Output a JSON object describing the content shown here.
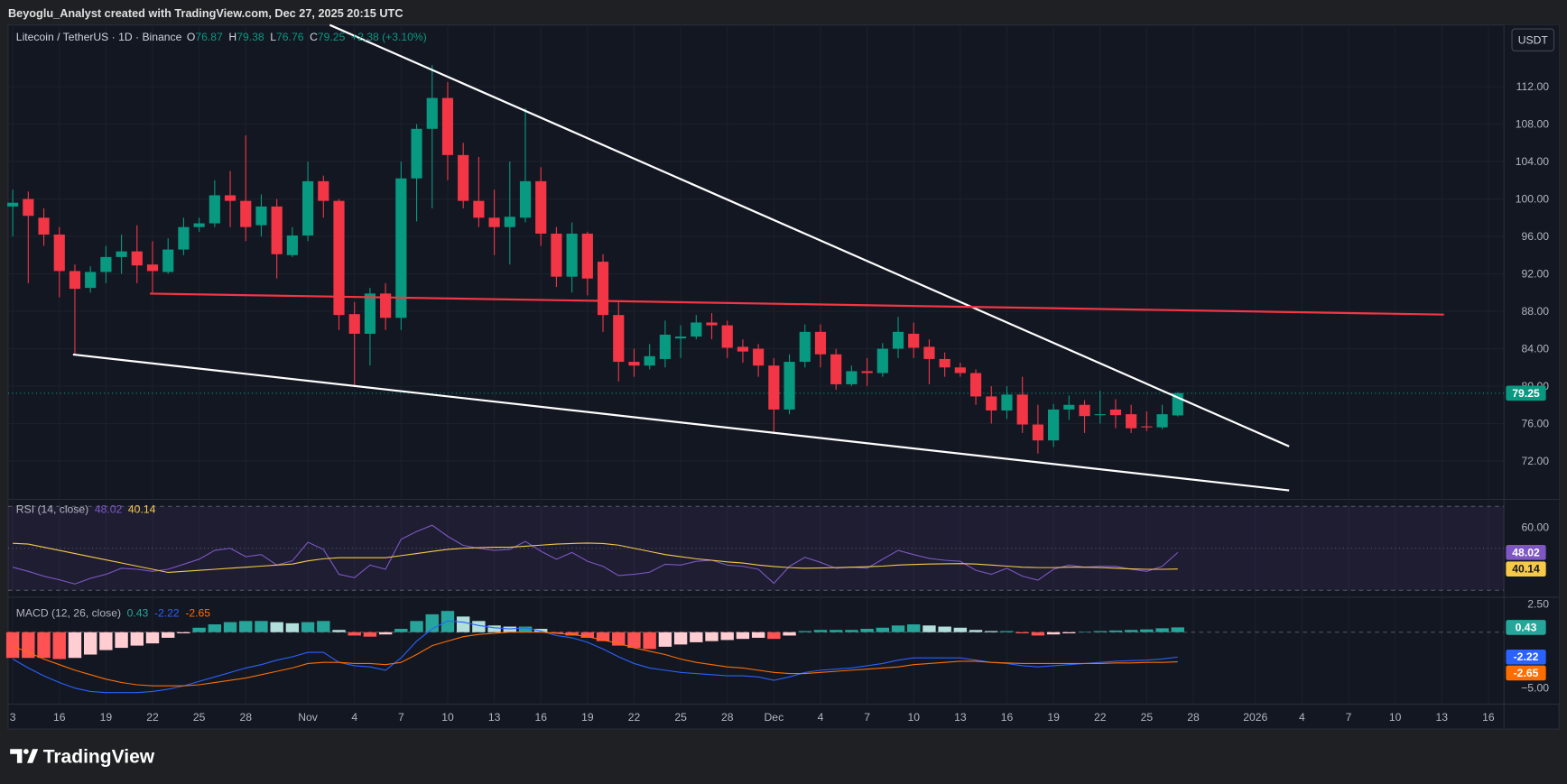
{
  "header": {
    "credit": "Beyoglu_Analyst created with TradingView.com, Dec 27, 2025 20:15 UTC"
  },
  "toolbar": {
    "currency": "USDT"
  },
  "footer": {
    "logo": "TradingView"
  },
  "chart_data": [
    {
      "type": "candlestick",
      "title": "Litecoin / TetherUS · 1D · Binance",
      "ohlc_keys": [
        "O",
        "H",
        "L",
        "C"
      ],
      "change": "+2.38 (+3.10%)",
      "up_color": "#089981",
      "down_color": "#f23645",
      "x": [
        0,
        1,
        2,
        3,
        4,
        5,
        6,
        7,
        8,
        9,
        10,
        11,
        12,
        13,
        14,
        15,
        16,
        17,
        18,
        19,
        20,
        21,
        22,
        23,
        24,
        25,
        26,
        27,
        28,
        29,
        30,
        31,
        32,
        33,
        34,
        35,
        36,
        37,
        38,
        39,
        40,
        41,
        42,
        43,
        44,
        45,
        46,
        47,
        48,
        49,
        50,
        51,
        52,
        53,
        54,
        55,
        56,
        57,
        58,
        59,
        60,
        61,
        62,
        63,
        64,
        65,
        66,
        67,
        68,
        69,
        70,
        71,
        72,
        73,
        74,
        75
      ],
      "open": [
        99.2,
        100,
        98,
        96.2,
        92.3,
        90.5,
        92.2,
        93.8,
        94.4,
        93,
        92.2,
        94.6,
        97,
        97.4,
        100.4,
        99.8,
        97.2,
        99.2,
        94,
        96.1,
        101.9,
        99.8,
        87.7,
        85.6,
        89.9,
        87.3,
        102.2,
        107.5,
        110.8,
        104.7,
        99.8,
        98,
        97,
        98,
        101.9,
        96.3,
        91.7,
        96.3,
        93.3,
        87.6,
        82.6,
        82.2,
        82.9,
        85.1,
        85.3,
        86.8,
        86.5,
        84.2,
        84,
        82.2,
        77.5,
        82.6,
        85.8,
        83.4,
        80.2,
        81.6,
        81.4,
        84,
        85.6,
        84.2,
        82.9,
        82,
        81.4,
        78.9,
        77.4,
        79.1,
        75.9,
        74.2,
        77.5,
        78,
        76.9,
        77.5,
        77,
        75.7,
        75.6,
        76.87
      ],
      "high": [
        101,
        100.8,
        99,
        97,
        93,
        92.8,
        95,
        96.2,
        97.2,
        95.5,
        95.8,
        98,
        98,
        102,
        103,
        106.8,
        100.5,
        100,
        97,
        104,
        102.5,
        100,
        89,
        90.5,
        91,
        104,
        108,
        114.3,
        112.5,
        106,
        104.5,
        101,
        104,
        109.7,
        103.4,
        97,
        97.5,
        96.5,
        94.1,
        89,
        84,
        84.5,
        87,
        86.5,
        87.6,
        87.8,
        87,
        85,
        84.5,
        83,
        83.4,
        86.6,
        86.6,
        84,
        82.2,
        83,
        84.6,
        87.4,
        86.8,
        85,
        83.6,
        82.5,
        81.8,
        80,
        80,
        81,
        78,
        78.1,
        79,
        78.5,
        79.5,
        78.6,
        78,
        77.3,
        78,
        79.38
      ],
      "low": [
        96,
        91,
        95,
        89.5,
        83.4,
        90,
        91,
        92,
        91,
        90,
        92,
        94,
        96.5,
        97,
        97,
        95.5,
        96,
        91.5,
        93.8,
        95.5,
        98,
        86,
        79.9,
        82.2,
        86,
        86,
        97.6,
        99,
        102,
        99,
        97,
        94,
        93,
        97.5,
        95,
        90.6,
        90,
        89.7,
        85.8,
        80.5,
        81,
        81.8,
        82,
        83,
        85,
        85,
        83,
        82.5,
        81,
        75,
        77,
        82,
        82,
        79.6,
        80,
        80,
        81,
        83,
        83,
        80.2,
        81,
        81,
        78,
        76,
        76.5,
        75,
        72.8,
        73.5,
        76.4,
        75,
        76,
        75.5,
        75,
        75.2,
        75.4,
        76.76
      ],
      "close": [
        99.6,
        98.2,
        96.2,
        92.3,
        90.4,
        92.2,
        93.8,
        94.4,
        92.9,
        92.3,
        94.6,
        97,
        97.4,
        100.4,
        99.8,
        97,
        99.2,
        94.1,
        96.1,
        101.9,
        99.8,
        87.6,
        85.6,
        89.9,
        87.3,
        102.2,
        107.5,
        110.8,
        104.7,
        99.8,
        98,
        97,
        98.1,
        101.9,
        96.3,
        91.7,
        96.3,
        91.5,
        87.6,
        82.6,
        82.2,
        83.2,
        85.5,
        85.3,
        86.8,
        86.5,
        84.1,
        83.7,
        82.2,
        77.5,
        82.6,
        85.8,
        83.4,
        80.2,
        81.6,
        81.4,
        84,
        85.8,
        84.1,
        82.9,
        82,
        81.4,
        78.9,
        77.4,
        79.1,
        75.9,
        74.2,
        77.5,
        78,
        76.8,
        77,
        76.9,
        75.5,
        75.6,
        77,
        79.25
      ],
      "xlim": [
        -0.3,
        96
      ],
      "xticks": [
        {
          "value": 0,
          "label": "3"
        },
        {
          "value": 3,
          "label": "16"
        },
        {
          "value": 6,
          "label": "19"
        },
        {
          "value": 9,
          "label": "22"
        },
        {
          "value": 12,
          "label": "25"
        },
        {
          "value": 15,
          "label": "28"
        },
        {
          "value": 19,
          "label": "Nov"
        },
        {
          "value": 22,
          "label": "4"
        },
        {
          "value": 25,
          "label": "7"
        },
        {
          "value": 28,
          "label": "10"
        },
        {
          "value": 31,
          "label": "13"
        },
        {
          "value": 34,
          "label": "16"
        },
        {
          "value": 37,
          "label": "19"
        },
        {
          "value": 40,
          "label": "22"
        },
        {
          "value": 43,
          "label": "25"
        },
        {
          "value": 46,
          "label": "28"
        },
        {
          "value": 49,
          "label": "Dec"
        },
        {
          "value": 52,
          "label": "4"
        },
        {
          "value": 55,
          "label": "7"
        },
        {
          "value": 58,
          "label": "10"
        },
        {
          "value": 61,
          "label": "13"
        },
        {
          "value": 64,
          "label": "16"
        },
        {
          "value": 67,
          "label": "19"
        },
        {
          "value": 70,
          "label": "22"
        },
        {
          "value": 73,
          "label": "25"
        },
        {
          "value": 76,
          "label": "28"
        },
        {
          "value": 80,
          "label": "2026"
        },
        {
          "value": 83,
          "label": "4"
        },
        {
          "value": 86,
          "label": "7"
        },
        {
          "value": 89,
          "label": "10"
        },
        {
          "value": 92,
          "label": "13"
        },
        {
          "value": 95,
          "label": "16"
        }
      ],
      "ylim": [
        67.9,
        118.6
      ],
      "yticks": [
        {
          "value": 72,
          "label": "72.00"
        },
        {
          "value": 76,
          "label": "76.00"
        },
        {
          "value": 80,
          "label": "80.00"
        },
        {
          "value": 84,
          "label": "84.00"
        },
        {
          "value": 88,
          "label": "88.00"
        },
        {
          "value": 92,
          "label": "92.00"
        },
        {
          "value": 96,
          "label": "96.00"
        },
        {
          "value": 100,
          "label": "100.00"
        },
        {
          "value": 104,
          "label": "104.00"
        },
        {
          "value": 108,
          "label": "108.00"
        },
        {
          "value": 112,
          "label": "112.00"
        }
      ],
      "grid": true,
      "drawings": [
        {
          "color": "#ffffff",
          "x": [
            20.41,
            82.17
          ],
          "y": [
            118.6,
            73.56
          ]
        },
        {
          "color": "#ffffff",
          "x": [
            3.88,
            82.17
          ],
          "y": [
            83.38,
            68.86
          ]
        },
        {
          "color": "#f23645",
          "x": [
            8.83,
            92.14
          ],
          "y": [
            89.89,
            87.65
          ]
        }
      ]
    },
    {
      "type": "line",
      "title": "RSI (14, close)",
      "series": [
        {
          "color": "#7e57c2",
          "values": [
            41,
            39,
            36.7,
            35,
            33,
            35.7,
            37.6,
            40.5,
            40,
            39,
            40,
            42.4,
            44.8,
            49,
            50,
            46,
            47,
            42,
            44,
            52.9,
            49.5,
            37.6,
            36,
            42,
            40,
            54.3,
            58,
            61,
            55.7,
            51.4,
            50,
            49,
            49.5,
            53.3,
            48.6,
            44.8,
            48,
            43.8,
            41.4,
            37,
            37.6,
            38.6,
            42.4,
            42,
            43.8,
            44.3,
            42,
            41.4,
            40,
            33.3,
            41.4,
            45.7,
            43.3,
            40.5,
            41,
            40.5,
            44.8,
            49,
            47,
            45.2,
            44.3,
            43.8,
            39.5,
            37.6,
            40.5,
            36.7,
            34.8,
            40,
            42,
            41,
            41.4,
            41.4,
            40,
            39,
            41.4,
            48.02
          ]
        },
        {
          "color": "#f7c948",
          "values": [
            52.4,
            52,
            50.5,
            49,
            47.5,
            46,
            44.5,
            43,
            41.5,
            40,
            38.5,
            39,
            39.5,
            40,
            40.5,
            41,
            41.5,
            42,
            42.5,
            44,
            45,
            45.5,
            45.5,
            45.5,
            45.5,
            46.5,
            47.5,
            48.5,
            49.5,
            50,
            50.3,
            50.5,
            50.5,
            51,
            51.5,
            52,
            52.3,
            52.5,
            52.3,
            51.5,
            50,
            48.5,
            47,
            46,
            45,
            44.3,
            43.5,
            43,
            42,
            41.3,
            40.8,
            40.5,
            40.6,
            40.8,
            41,
            41.2,
            41.5,
            42,
            42.3,
            42.5,
            42.6,
            42.7,
            42.5,
            42,
            41.5,
            41,
            40.8,
            40.8,
            41,
            41,
            40.8,
            40.5,
            40.2,
            40,
            40,
            40.14
          ]
        }
      ],
      "ylim": [
        26.67,
        73.33
      ],
      "yticks": [
        {
          "value": 60,
          "label": "60.00"
        }
      ],
      "bands": [
        70,
        50,
        30
      ],
      "band_fill": "#7e57c2"
    },
    {
      "type": "macd",
      "title": "MACD (12, 26, close)",
      "histogram": {
        "colors": [
          "#26a69a",
          "#b2dfdb",
          "#ffcdd2",
          "#ff5252"
        ],
        "values": [
          -2.3,
          -2.3,
          -2.3,
          -2.4,
          -2.3,
          -2.0,
          -1.6,
          -1.4,
          -1.2,
          -1.0,
          -0.5,
          -0.1,
          0.4,
          0.7,
          0.9,
          1.0,
          1.0,
          0.9,
          0.8,
          0.9,
          1.0,
          0.2,
          -0.3,
          -0.4,
          -0.2,
          0.3,
          1.0,
          1.6,
          1.9,
          1.4,
          1.0,
          0.6,
          0.5,
          0.5,
          0.3,
          -0.1,
          -0.3,
          -0.5,
          -0.8,
          -1.2,
          -1.4,
          -1.5,
          -1.3,
          -1.1,
          -0.9,
          -0.8,
          -0.7,
          -0.6,
          -0.5,
          -0.6,
          -0.3,
          0.1,
          0.2,
          0.2,
          0.2,
          0.3,
          0.4,
          0.6,
          0.7,
          0.6,
          0.5,
          0.4,
          0.2,
          0.1,
          0.1,
          -0.1,
          -0.3,
          -0.2,
          -0.1,
          0.02,
          0.1,
          0.15,
          0.2,
          0.25,
          0.35,
          0.43
        ]
      },
      "series": [
        {
          "color": "#2962ff",
          "values": [
            -2.4,
            -3.2,
            -3.9,
            -4.5,
            -5.0,
            -5.3,
            -5.4,
            -5.4,
            -5.4,
            -5.3,
            -5.1,
            -4.8,
            -4.4,
            -4.0,
            -3.6,
            -3.2,
            -2.9,
            -2.5,
            -2.2,
            -1.8,
            -1.8,
            -2.7,
            -3.0,
            -3.1,
            -3.4,
            -2.3,
            -0.8,
            0.3,
            1.0,
            0.9,
            0.6,
            0.4,
            0.3,
            0.4,
            0.1,
            -0.3,
            -0.5,
            -0.9,
            -1.5,
            -2.2,
            -2.8,
            -3.2,
            -3.4,
            -3.6,
            -3.7,
            -3.8,
            -3.9,
            -3.9,
            -4.0,
            -4.3,
            -4.0,
            -3.6,
            -3.4,
            -3.3,
            -3.2,
            -3.0,
            -2.8,
            -2.5,
            -2.3,
            -2.3,
            -2.3,
            -2.3,
            -2.5,
            -2.7,
            -2.8,
            -3.0,
            -3.1,
            -3.0,
            -2.9,
            -2.8,
            -2.7,
            -2.6,
            -2.55,
            -2.5,
            -2.4,
            -2.22
          ]
        },
        {
          "color": "#ff6d00",
          "values": [
            -1.25,
            -1.8,
            -2.4,
            -2.9,
            -3.4,
            -3.8,
            -4.2,
            -4.5,
            -4.7,
            -4.8,
            -4.8,
            -4.8,
            -4.7,
            -4.5,
            -4.3,
            -4.1,
            -3.8,
            -3.5,
            -3.2,
            -2.8,
            -2.7,
            -2.7,
            -2.8,
            -2.8,
            -2.9,
            -2.7,
            -2.0,
            -1.2,
            -0.8,
            -0.4,
            -0.2,
            -0.1,
            0,
            0,
            0,
            -0.1,
            -0.2,
            -0.4,
            -0.7,
            -1.0,
            -1.4,
            -1.7,
            -2.0,
            -2.4,
            -2.7,
            -2.9,
            -3.1,
            -3.2,
            -3.4,
            -3.6,
            -3.7,
            -3.7,
            -3.6,
            -3.5,
            -3.4,
            -3.3,
            -3.2,
            -3.1,
            -2.9,
            -2.8,
            -2.7,
            -2.6,
            -2.6,
            -2.7,
            -2.75,
            -2.8,
            -2.8,
            -2.8,
            -2.8,
            -2.8,
            -2.8,
            -2.75,
            -2.75,
            -2.7,
            -2.7,
            -2.65
          ]
        }
      ],
      "ylim": [
        -6.43,
        3.125
      ],
      "yticks": [
        {
          "value": 2.5,
          "label": "2.50"
        },
        {
          "value": -5,
          "label": "−5.00"
        }
      ],
      "zero_line": 0
    }
  ]
}
